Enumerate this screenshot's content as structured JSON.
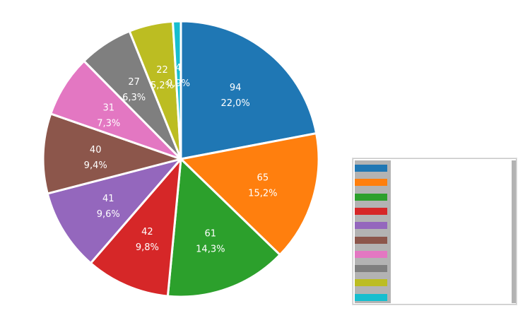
{
  "chart_data": {
    "type": "pie",
    "title": "",
    "categories": [
      "",
      "",
      "",
      "",
      "",
      "",
      "",
      "",
      "",
      ""
    ],
    "values": [
      94,
      65,
      61,
      42,
      41,
      40,
      31,
      27,
      22,
      4
    ],
    "percent_labels": [
      "22,0%",
      "15,2%",
      "14,3%",
      "9,8%",
      "9,6%",
      "9,4%",
      "7,3%",
      "6,3%",
      "5,2%",
      "0,9%"
    ],
    "value_labels": [
      "94",
      "65",
      "61",
      "42",
      "41",
      "40",
      "31",
      "27",
      "22",
      "4"
    ],
    "colors": [
      "#1f77b4",
      "#ff7f0e",
      "#2ca02c",
      "#d62728",
      "#9467bd",
      "#8c564b",
      "#e377c2",
      "#7f7f7f",
      "#bcbd22",
      "#17becf"
    ],
    "start_angle": "12 o'clock",
    "direction": "clockwise",
    "legend_position": "right",
    "legend_labels_visible": false
  },
  "legend": {
    "swatches": [
      "#1f77b4",
      "#ff7f0e",
      "#2ca02c",
      "#d62728",
      "#9467bd",
      "#8c564b",
      "#e377c2",
      "#7f7f7f",
      "#bcbd22",
      "#17becf"
    ]
  }
}
